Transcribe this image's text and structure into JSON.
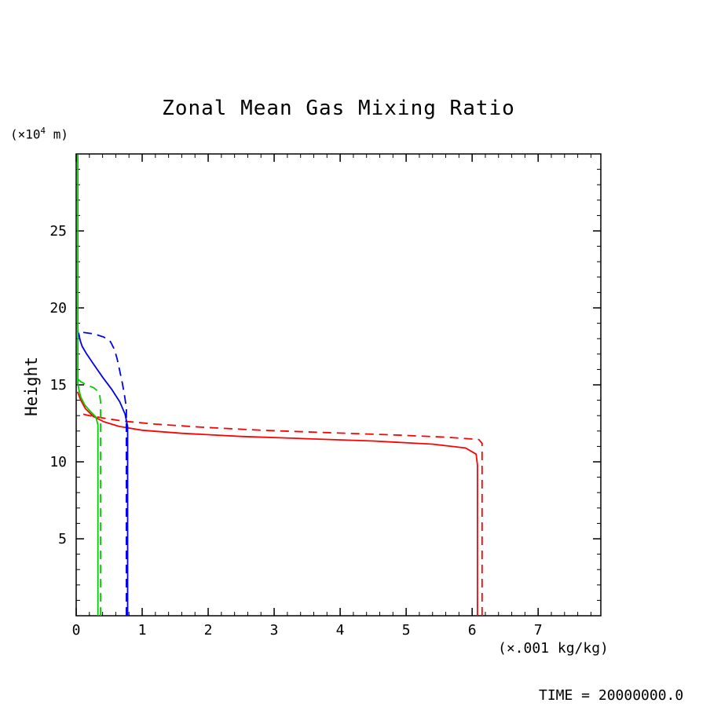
{
  "chart": {
    "title": "Zonal Mean Gas Mixing Ratio",
    "ylabel": "Height",
    "y_unit": {
      "prefix": "(×10",
      "sup": "4",
      "suffix": " m)"
    },
    "x_unit": "(×.001 kg/kg)"
  },
  "footer": {
    "time_label": "TIME = 20000000.0"
  },
  "chart_data": {
    "type": "line",
    "title": "Zonal Mean Gas Mixing Ratio",
    "xlabel": "(×.001 kg/kg)",
    "ylabel": "Height (×10^4 m)",
    "grid": false,
    "legend": "none",
    "x_axis": {
      "min": 0,
      "max": 7.95,
      "major_ticks": [
        0,
        1,
        2,
        3,
        4,
        5,
        6,
        7
      ],
      "minor_step": 0.2
    },
    "y_axis": {
      "min": 0,
      "max": 30,
      "major_ticks": [
        5,
        10,
        15,
        20,
        25
      ],
      "minor_step": 1
    },
    "series": [
      {
        "name": "red-solid",
        "color": "#ff0000",
        "dash": null,
        "points": [
          [
            6.08,
            0
          ],
          [
            6.08,
            9.8
          ],
          [
            6.06,
            10.5
          ],
          [
            5.9,
            10.9
          ],
          [
            5.4,
            11.15
          ],
          [
            4.5,
            11.35
          ],
          [
            3.5,
            11.5
          ],
          [
            2.5,
            11.65
          ],
          [
            1.6,
            11.85
          ],
          [
            1.0,
            12.05
          ],
          [
            0.65,
            12.3
          ],
          [
            0.42,
            12.6
          ],
          [
            0.26,
            12.95
          ],
          [
            0.14,
            13.45
          ],
          [
            0.07,
            14.0
          ],
          [
            0.02,
            14.55
          ]
        ]
      },
      {
        "name": "red-dashed",
        "color": "#ff0000",
        "dash": "11,7",
        "points": [
          [
            6.15,
            0
          ],
          [
            6.15,
            11.2
          ],
          [
            6.1,
            11.45
          ],
          [
            5.6,
            11.6
          ],
          [
            4.8,
            11.75
          ],
          [
            3.8,
            11.9
          ],
          [
            2.8,
            12.05
          ],
          [
            1.9,
            12.25
          ],
          [
            1.2,
            12.45
          ],
          [
            0.7,
            12.65
          ],
          [
            0.4,
            12.85
          ],
          [
            0.2,
            13.0
          ],
          [
            0.1,
            13.1
          ]
        ]
      },
      {
        "name": "blue-solid",
        "color": "#0000ee",
        "dash": null,
        "points": [
          [
            0.78,
            0
          ],
          [
            0.78,
            12.3
          ],
          [
            0.74,
            13.1
          ],
          [
            0.66,
            13.9
          ],
          [
            0.54,
            14.7
          ],
          [
            0.4,
            15.5
          ],
          [
            0.27,
            16.3
          ],
          [
            0.16,
            17.0
          ],
          [
            0.09,
            17.5
          ],
          [
            0.06,
            17.9
          ],
          [
            0.04,
            18.3
          ],
          [
            0.02,
            18.5
          ]
        ]
      },
      {
        "name": "blue-dashed",
        "color": "#0000ee",
        "dash": "11,7",
        "points": [
          [
            0.76,
            0
          ],
          [
            0.76,
            13.5
          ],
          [
            0.73,
            14.4
          ],
          [
            0.7,
            15.1
          ],
          [
            0.66,
            15.9
          ],
          [
            0.62,
            16.7
          ],
          [
            0.58,
            17.3
          ],
          [
            0.52,
            17.8
          ],
          [
            0.42,
            18.1
          ],
          [
            0.28,
            18.3
          ],
          [
            0.12,
            18.4
          ],
          [
            0.05,
            18.45
          ]
        ]
      },
      {
        "name": "green-solid",
        "color": "#00cc00",
        "dash": null,
        "points": [
          [
            0.33,
            0
          ],
          [
            0.33,
            12.4
          ],
          [
            0.3,
            12.9
          ],
          [
            0.21,
            13.3
          ],
          [
            0.13,
            13.7
          ],
          [
            0.07,
            14.2
          ],
          [
            0.04,
            14.7
          ],
          [
            0.025,
            15.1
          ],
          [
            0.025,
            29.95
          ]
        ]
      },
      {
        "name": "green-dashed",
        "color": "#00cc00",
        "dash": "11,7",
        "points": [
          [
            0.37,
            0
          ],
          [
            0.37,
            13.9
          ],
          [
            0.35,
            14.5
          ],
          [
            0.27,
            14.8
          ],
          [
            0.16,
            15.0
          ],
          [
            0.07,
            15.2
          ],
          [
            0.03,
            15.35
          ]
        ]
      }
    ]
  }
}
